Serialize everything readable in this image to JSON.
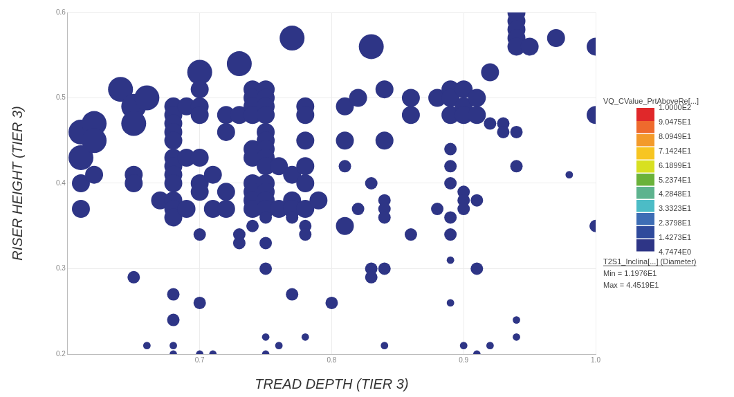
{
  "chart_data": {
    "type": "bubble",
    "xlabel": "TREAD DEPTH (TIER 3)",
    "ylabel": "RISER HEIGHT (TIER 3)",
    "clabel": "VQ_CValue_PrtAboveRe[...]",
    "annotations": [
      "T2S1_Inclina[...] (Diameter)",
      "Min = 1.1976E1",
      "Max = 4.4519E1"
    ],
    "xlim": [
      0.6,
      1.0
    ],
    "xticks": [
      0.7,
      0.8,
      0.9,
      {
        "value": 1,
        "label": "1.0"
      }
    ],
    "ylim": [
      0.2,
      0.6
    ],
    "yticks": [
      0.2,
      0.3,
      0.4,
      0.5,
      0.6
    ],
    "grid": true,
    "clim": [
      4.7474,
      100
    ],
    "cticks": [
      {
        "value": 4.7474,
        "label": "4.7474E0"
      },
      {
        "value": 14.273,
        "label": "1.4273E1"
      },
      {
        "value": 23.798,
        "label": "2.3798E1"
      },
      {
        "value": 33.323,
        "label": "3.3323E1"
      },
      {
        "value": 42.848,
        "label": "4.2848E1"
      },
      {
        "value": 52.374,
        "label": "5.2374E1"
      },
      {
        "value": 61.899,
        "label": "6.1899E1"
      },
      {
        "value": 71.424,
        "label": "7.1424E1"
      },
      {
        "value": 80.949,
        "label": "8.0949E1"
      },
      {
        "value": 90.475,
        "label": "9.0475E1"
      },
      {
        "value": 100,
        "label": "1.0000E2"
      }
    ],
    "x": [
      0.61,
      0.61,
      0.61,
      0.61,
      0.62,
      0.62,
      0.62,
      0.64,
      0.65,
      0.65,
      0.65,
      0.65,
      0.65,
      0.66,
      0.66,
      0.67,
      0.68,
      0.68,
      0.68,
      0.68,
      0.68,
      0.68,
      0.68,
      0.68,
      0.68,
      0.68,
      0.68,
      0.68,
      0.68,
      0.68,
      0.68,
      0.68,
      0.69,
      0.69,
      0.69,
      0.7,
      0.7,
      0.7,
      0.7,
      0.7,
      0.7,
      0.7,
      0.7,
      0.7,
      0.7,
      0.71,
      0.71,
      0.71,
      0.72,
      0.72,
      0.72,
      0.72,
      0.73,
      0.73,
      0.73,
      0.73,
      0.74,
      0.74,
      0.74,
      0.74,
      0.74,
      0.74,
      0.74,
      0.74,
      0.74,
      0.74,
      0.74,
      0.75,
      0.75,
      0.75,
      0.75,
      0.75,
      0.75,
      0.75,
      0.75,
      0.75,
      0.75,
      0.75,
      0.75,
      0.75,
      0.75,
      0.75,
      0.75,
      0.75,
      0.75,
      0.76,
      0.76,
      0.76,
      0.77,
      0.77,
      0.77,
      0.77,
      0.77,
      0.77,
      0.78,
      0.78,
      0.78,
      0.78,
      0.78,
      0.78,
      0.78,
      0.78,
      0.78,
      0.79,
      0.8,
      0.81,
      0.81,
      0.81,
      0.81,
      0.82,
      0.82,
      0.83,
      0.83,
      0.83,
      0.83,
      0.84,
      0.84,
      0.84,
      0.84,
      0.84,
      0.84,
      0.84,
      0.86,
      0.86,
      0.86,
      0.88,
      0.88,
      0.89,
      0.89,
      0.89,
      0.89,
      0.89,
      0.89,
      0.89,
      0.89,
      0.89,
      0.89,
      0.9,
      0.9,
      0.9,
      0.9,
      0.9,
      0.9,
      0.9,
      0.91,
      0.91,
      0.91,
      0.91,
      0.91,
      0.92,
      0.92,
      0.92,
      0.93,
      0.93,
      0.94,
      0.94,
      0.94,
      0.94,
      0.94,
      0.94,
      0.94,
      0.94,
      0.94,
      0.95,
      0.97,
      0.98,
      1.0,
      1.0,
      1.0
    ],
    "values": [
      0.46,
      0.43,
      0.4,
      0.37,
      0.47,
      0.45,
      0.41,
      0.51,
      0.49,
      0.47,
      0.41,
      0.4,
      0.29,
      0.5,
      0.21,
      0.38,
      0.49,
      0.48,
      0.47,
      0.46,
      0.45,
      0.43,
      0.42,
      0.41,
      0.4,
      0.38,
      0.37,
      0.36,
      0.27,
      0.24,
      0.21,
      0.2,
      0.49,
      0.43,
      0.37,
      0.53,
      0.51,
      0.49,
      0.48,
      0.43,
      0.4,
      0.39,
      0.34,
      0.26,
      0.2,
      0.41,
      0.37,
      0.2,
      0.48,
      0.46,
      0.39,
      0.37,
      0.54,
      0.48,
      0.34,
      0.33,
      0.51,
      0.5,
      0.49,
      0.48,
      0.44,
      0.43,
      0.4,
      0.39,
      0.38,
      0.37,
      0.35,
      0.51,
      0.5,
      0.49,
      0.48,
      0.46,
      0.45,
      0.44,
      0.43,
      0.42,
      0.4,
      0.39,
      0.38,
      0.37,
      0.36,
      0.33,
      0.3,
      0.22,
      0.2,
      0.42,
      0.37,
      0.21,
      0.57,
      0.41,
      0.38,
      0.37,
      0.36,
      0.27,
      0.49,
      0.48,
      0.45,
      0.42,
      0.4,
      0.37,
      0.35,
      0.34,
      0.22,
      0.38,
      0.26,
      0.49,
      0.45,
      0.42,
      0.35,
      0.5,
      0.37,
      0.56,
      0.4,
      0.3,
      0.29,
      0.51,
      0.45,
      0.38,
      0.37,
      0.36,
      0.3,
      0.21,
      0.5,
      0.48,
      0.34,
      0.5,
      0.37,
      0.51,
      0.5,
      0.48,
      0.44,
      0.42,
      0.4,
      0.36,
      0.34,
      0.31,
      0.26,
      0.51,
      0.49,
      0.48,
      0.39,
      0.38,
      0.37,
      0.21,
      0.5,
      0.48,
      0.38,
      0.3,
      0.2,
      0.53,
      0.47,
      0.21,
      0.47,
      0.46,
      0.6,
      0.59,
      0.58,
      0.57,
      0.56,
      0.46,
      0.42,
      0.24,
      0.22,
      0.56,
      0.57,
      0.41,
      0.56,
      0.48,
      0.35
    ],
    "sizes": [
      1,
      1,
      0.52,
      0.52,
      1,
      1,
      0.52,
      1,
      1,
      1,
      0.52,
      0.52,
      0.25,
      1,
      0.09,
      0.52,
      0.52,
      0.52,
      0.52,
      0.52,
      0.52,
      0.52,
      0.52,
      0.52,
      0.52,
      0.52,
      0.52,
      0.52,
      0.25,
      0.25,
      0.09,
      0.09,
      0.52,
      0.52,
      0.52,
      1,
      0.52,
      0.52,
      0.52,
      0.52,
      0.52,
      0.52,
      0.25,
      0.25,
      0.09,
      0.52,
      0.52,
      0.09,
      0.52,
      0.52,
      0.52,
      0.52,
      1,
      0.52,
      0.25,
      0.25,
      0.52,
      0.52,
      0.52,
      0.52,
      0.52,
      0.52,
      0.52,
      0.52,
      0.52,
      0.52,
      0.25,
      0.52,
      0.52,
      0.52,
      0.52,
      0.52,
      0.52,
      0.52,
      0.52,
      0.52,
      0.52,
      0.52,
      0.52,
      0.52,
      0.25,
      0.25,
      0.25,
      0.09,
      0.09,
      0.52,
      0.52,
      0.09,
      1,
      0.52,
      0.52,
      0.52,
      0.25,
      0.25,
      0.52,
      0.52,
      0.52,
      0.52,
      0.52,
      0.52,
      0.25,
      0.25,
      0.09,
      0.52,
      0.25,
      0.52,
      0.52,
      0.25,
      0.52,
      0.52,
      0.25,
      1,
      0.25,
      0.25,
      0.25,
      0.52,
      0.52,
      0.25,
      0.25,
      0.25,
      0.25,
      0.09,
      0.52,
      0.52,
      0.25,
      0.52,
      0.25,
      0.52,
      0.52,
      0.52,
      0.25,
      0.25,
      0.25,
      0.25,
      0.25,
      0.09,
      0.09,
      0.52,
      0.52,
      0.52,
      0.25,
      0.25,
      0.25,
      0.09,
      0.52,
      0.52,
      0.25,
      0.25,
      0.09,
      0.52,
      0.25,
      0.09,
      0.25,
      0.25,
      0.52,
      0.52,
      0.52,
      0.52,
      0.52,
      0.25,
      0.25,
      0.09,
      0.09,
      0.52,
      0.52,
      0.09,
      0.52,
      0.52,
      0.25
    ],
    "color": "#2e3586"
  }
}
